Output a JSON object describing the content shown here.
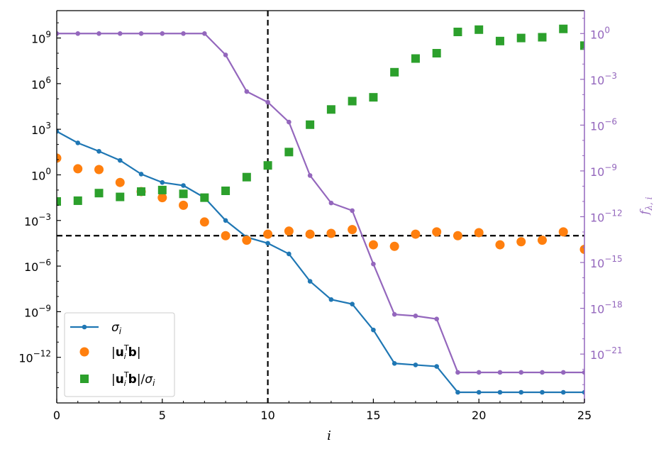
{
  "chart_data": {
    "type": "scatter",
    "xlabel": "i",
    "ylabel_right": "f_{λ, i}",
    "xlim": [
      0,
      25
    ],
    "ylim_left_log10": [
      -15.0,
      10.8
    ],
    "ylim_right_log10": [
      -24.2,
      1.5
    ],
    "x_ticks": [
      0,
      5,
      10,
      15,
      20,
      25
    ],
    "y_left_tick_exponents": [
      9,
      6,
      3,
      0,
      -3,
      -6,
      -9,
      -12
    ],
    "y_right_tick_exponents": [
      0,
      -3,
      -6,
      -9,
      -12,
      -15,
      -18,
      -21
    ],
    "left_scale": "log",
    "right_scale": "log",
    "grid": false,
    "legend_position": "lower-left",
    "vertical_reference_x": 10,
    "horizontal_reference_left_log10": -4.0,
    "colors": {
      "sigma": "#1f77b4",
      "utb": "#ff7f0e",
      "ratio": "#2ca02c",
      "filter": "#9467bd"
    },
    "x": [
      0,
      1,
      2,
      3,
      4,
      5,
      6,
      7,
      8,
      9,
      10,
      11,
      12,
      13,
      14,
      15,
      16,
      17,
      18,
      19,
      20,
      21,
      22,
      23,
      24,
      25
    ],
    "series": [
      {
        "name": "σ_i",
        "axis": "left",
        "style": "line-dot",
        "log10_values": [
          2.86,
          2.1,
          1.55,
          0.95,
          0.05,
          -0.5,
          -0.7,
          -1.5,
          -3.0,
          -4.1,
          -4.5,
          -5.2,
          -7.0,
          -8.2,
          -8.5,
          -10.2,
          -12.4,
          -12.5,
          -12.6,
          -14.3,
          -14.3,
          -14.3,
          -14.3,
          -14.3,
          -14.3,
          -14.3
        ]
      },
      {
        "name": "|u_i^T b|",
        "axis": "left",
        "style": "circle",
        "log10_values": [
          1.1,
          0.4,
          0.35,
          -0.5,
          -1.1,
          -1.5,
          -2.0,
          -3.1,
          -4.0,
          -4.3,
          -3.9,
          -3.7,
          -3.9,
          -3.85,
          -3.6,
          -4.6,
          -4.7,
          -3.9,
          -3.75,
          -4.0,
          -3.8,
          -4.6,
          -4.4,
          -4.3,
          -3.75,
          -4.9
        ]
      },
      {
        "name": "|u_i^T b|/σ_i",
        "axis": "left",
        "style": "square",
        "log10_values": [
          -1.75,
          -1.7,
          -1.2,
          -1.45,
          -1.1,
          -1.0,
          -1.25,
          -1.5,
          -1.05,
          -0.15,
          0.62,
          1.5,
          3.3,
          4.3,
          4.85,
          5.1,
          6.75,
          7.65,
          8.0,
          9.4,
          9.55,
          8.8,
          9.0,
          9.05,
          9.6,
          8.5
        ]
      },
      {
        "name": "f_{λ, i}",
        "axis": "right",
        "style": "line-dot",
        "log10_values": [
          0.0,
          0.0,
          0.0,
          0.0,
          0.0,
          0.0,
          0.0,
          0.0,
          -1.4,
          -3.8,
          -4.5,
          -5.8,
          -9.3,
          -11.1,
          -11.6,
          -15.1,
          -18.4,
          -18.5,
          -18.7,
          -22.2,
          -22.2,
          -22.2,
          -22.2,
          -22.2,
          -22.2,
          -22.2
        ]
      }
    ],
    "legend": [
      "σ_i",
      "|u_i^T b|",
      "|u_i^T b|/σ_i"
    ]
  }
}
